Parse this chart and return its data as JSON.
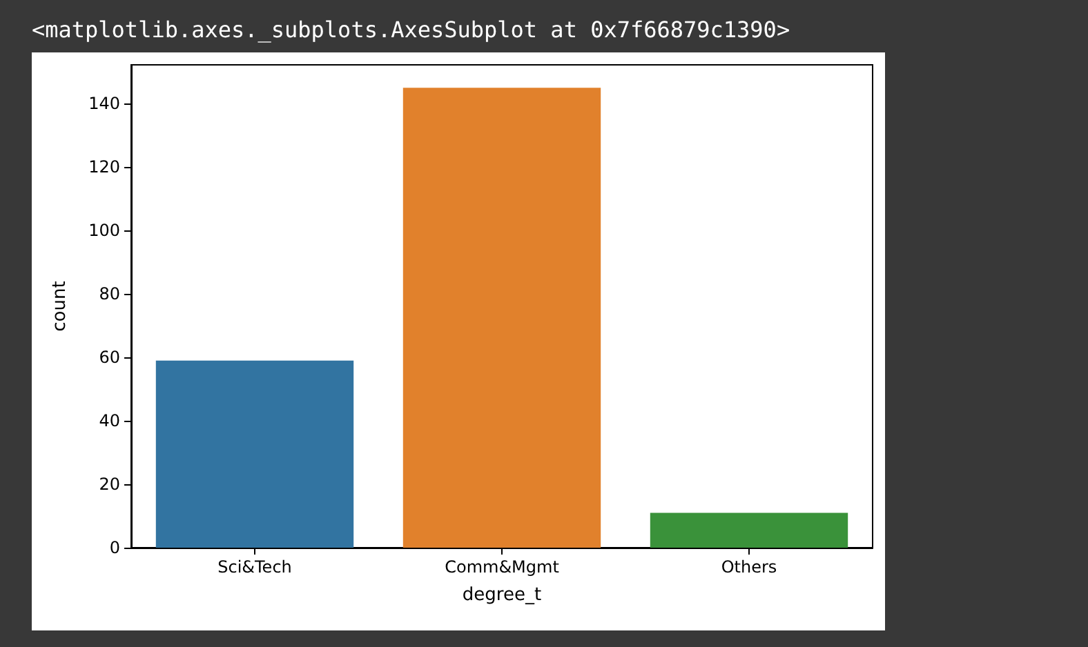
{
  "chart_data": {
    "type": "bar",
    "annotations": [
      "<matplotlib.axes._subplots.AxesSubplot at 0x7f66879c1390>"
    ],
    "xlabel": "degree_t",
    "ylabel": "count",
    "categories": [
      "Sci&Tech",
      "Comm&Mgmt",
      "Others"
    ],
    "values": [
      59,
      145,
      11
    ],
    "colors": [
      "#3274a1",
      "#e1812c",
      "#3a923a"
    ],
    "ylim": [
      0,
      152.25
    ],
    "yticks": [
      0,
      20,
      40,
      60,
      80,
      100,
      120,
      140
    ],
    "grid": false
  }
}
